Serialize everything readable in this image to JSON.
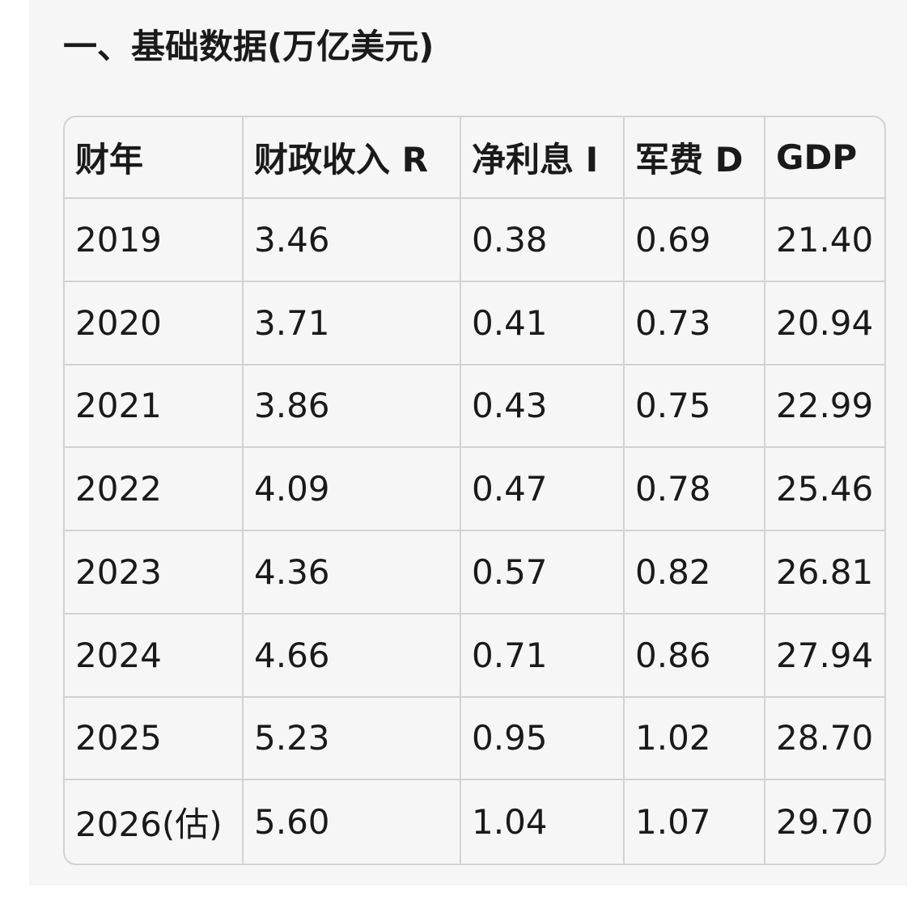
{
  "title": "一、基础数据(万亿美元)",
  "table": {
    "header": [
      "财年",
      "财政收入 R",
      "净利息 I",
      "军费 D",
      "GDP"
    ],
    "rows": [
      [
        "2019",
        "3.46",
        "0.38",
        "0.69",
        "21.40"
      ],
      [
        "2020",
        "3.71",
        "0.41",
        "0.73",
        "20.94"
      ],
      [
        "2021",
        "3.86",
        "0.43",
        "0.75",
        "22.99"
      ],
      [
        "2022",
        "4.09",
        "0.47",
        "0.78",
        "25.46"
      ],
      [
        "2023",
        "4.36",
        "0.57",
        "0.82",
        "26.81"
      ],
      [
        "2024",
        "4.66",
        "0.71",
        "0.86",
        "27.94"
      ],
      [
        "2025",
        "5.23",
        "0.95",
        "1.02",
        "28.70"
      ],
      [
        "2026(估)",
        "5.60",
        "1.04",
        "1.07",
        "29.70"
      ]
    ]
  }
}
